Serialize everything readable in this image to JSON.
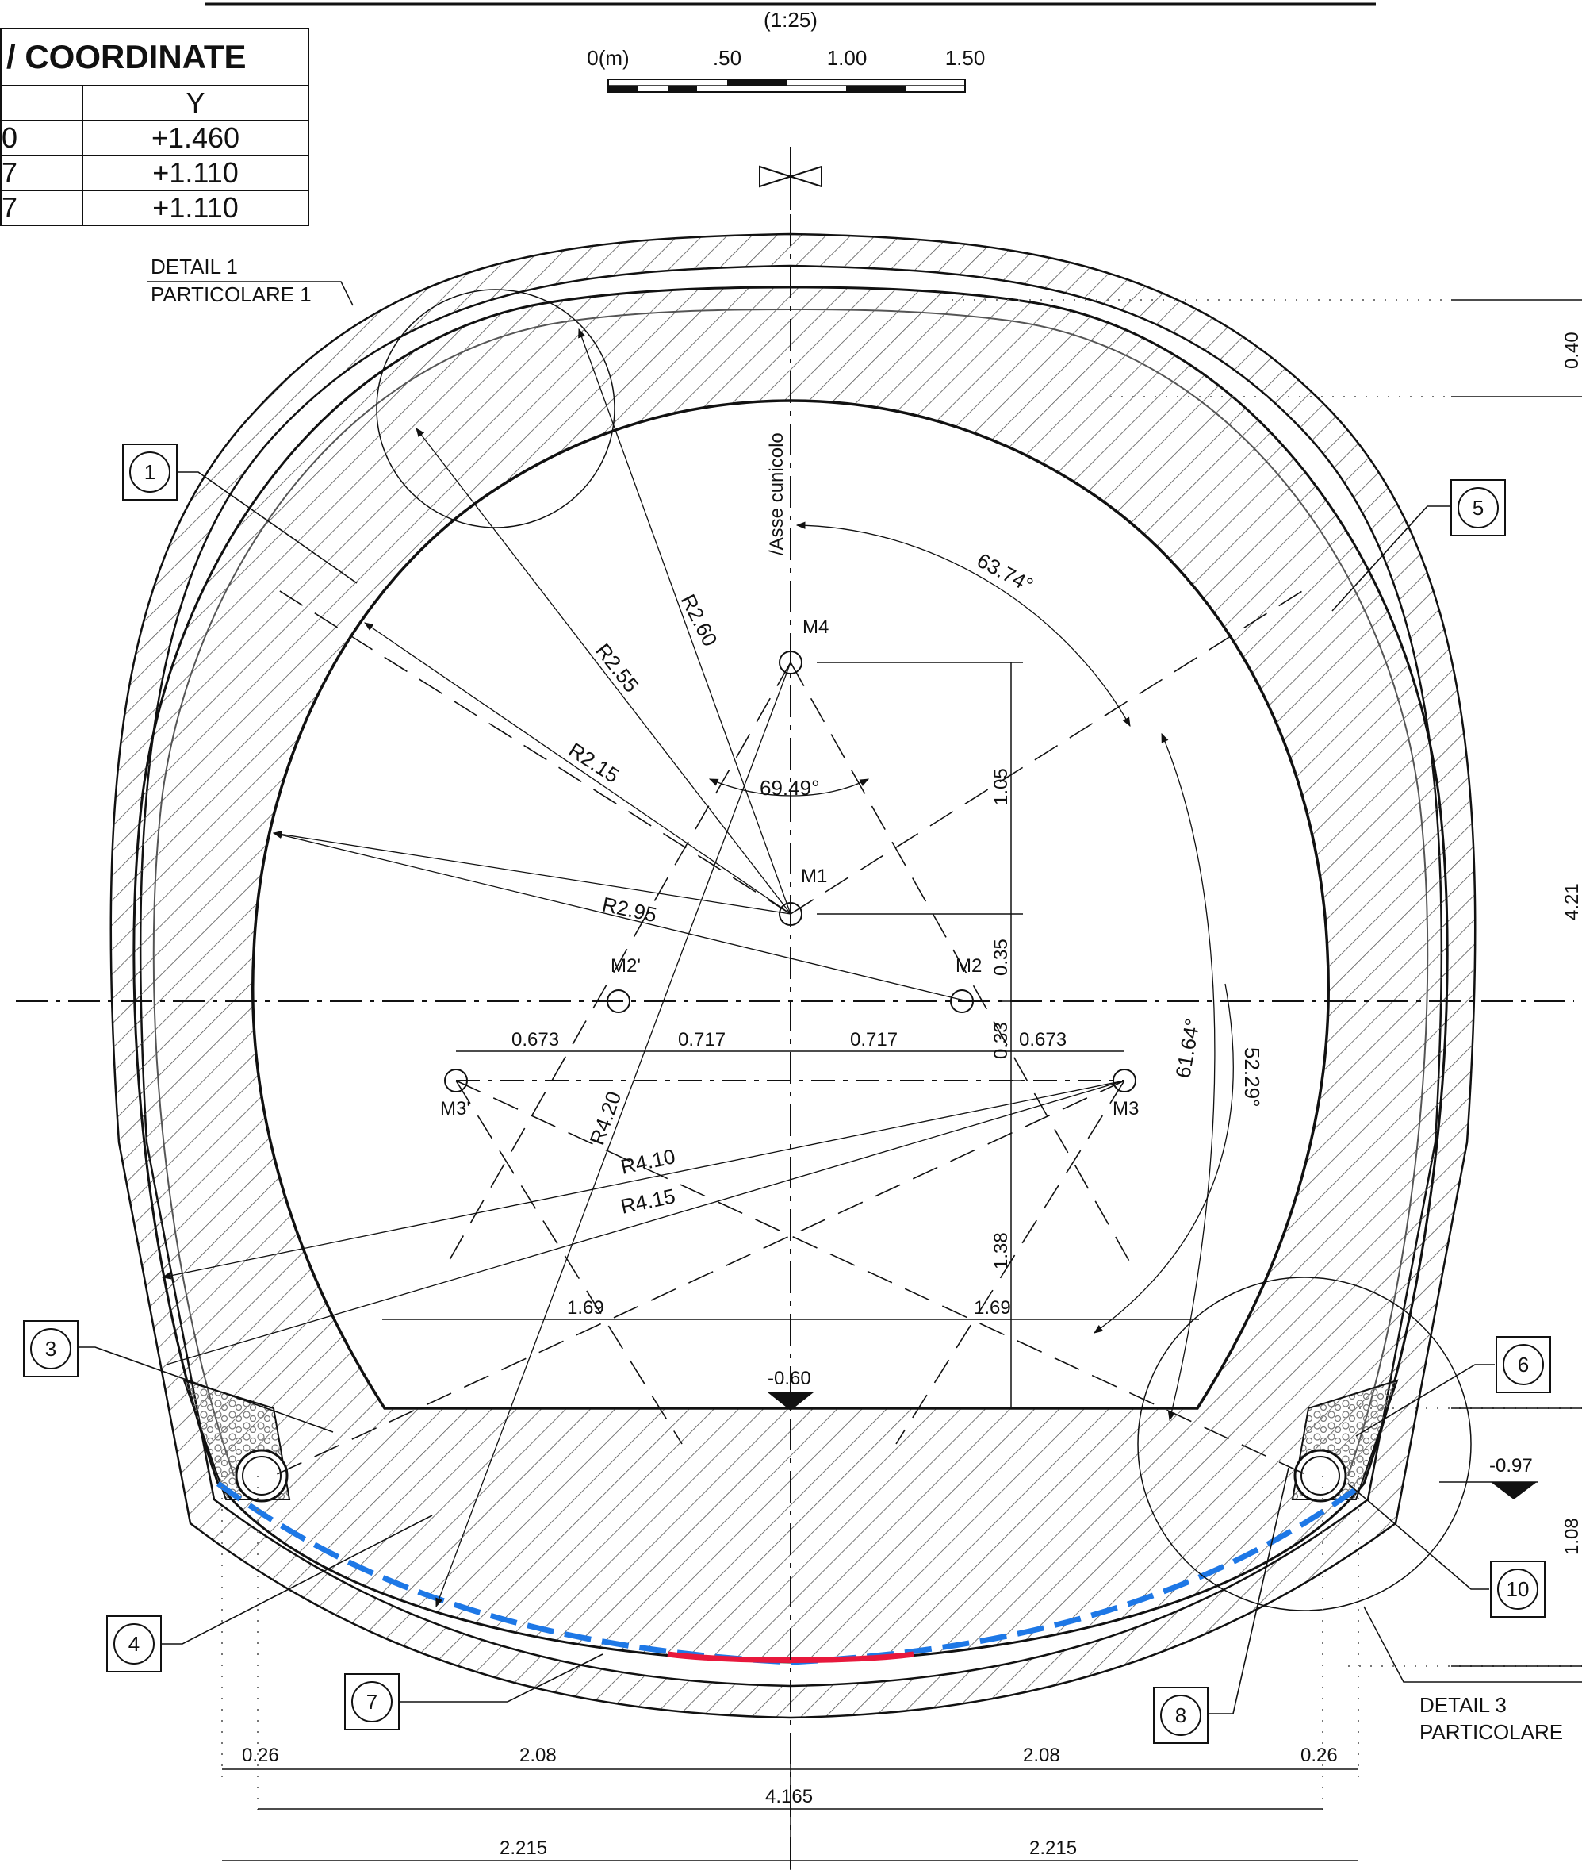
{
  "scale_label": "(1:25)",
  "scale_bar": {
    "ticks": [
      "0(m)",
      ".50",
      "1.00",
      "1.50"
    ]
  },
  "coordinate_table": {
    "title": "/ COORDINATE",
    "column_y": "Y",
    "rows": [
      {
        "x_fragment": "0",
        "y": "+1.460"
      },
      {
        "x_fragment": "7",
        "y": "+1.110"
      },
      {
        "x_fragment": "7",
        "y": "+1.110"
      }
    ]
  },
  "axis_label": "/Asse cunicolo",
  "details": {
    "detail1_en": "DETAIL 1",
    "detail1_it": "PARTICOLARE 1",
    "detail3_en": "DETAIL 3",
    "detail3_it": "PARTICOLARE"
  },
  "callouts": [
    "1",
    "3",
    "4",
    "5",
    "6",
    "7",
    "8",
    "10"
  ],
  "centers": [
    "M4",
    "M1",
    "M2'",
    "M2",
    "M3'",
    "M3"
  ],
  "radii": [
    "R2.60",
    "R2.55",
    "R2.15",
    "R2.95",
    "R4.20",
    "R4.10",
    "R4.15"
  ],
  "angles": [
    "63.74°",
    "69.49°",
    "61.64°",
    "52.29°"
  ],
  "dimensions": {
    "horizontal_center": [
      "0.673",
      "0.717",
      "0.717",
      "0.673"
    ],
    "vertical_center": [
      "1.05",
      "0.35",
      "0.33",
      "1.38"
    ],
    "half_width": [
      "1.69",
      "1.69"
    ],
    "bottom_row1": [
      "0.26",
      "2.08",
      "2.08",
      "0.26"
    ],
    "bottom_row2": "4.165",
    "bottom_row3": [
      "2.215",
      "2.215"
    ],
    "right_side": [
      "0.40",
      "4.21",
      "1.08"
    ]
  },
  "levels": [
    "-0.60",
    "-0.97"
  ],
  "colors": {
    "lining_line": "#111111",
    "waterproofing": "#1e78e6",
    "invert_membrane": "#e8183c",
    "hatch": "#444444"
  }
}
